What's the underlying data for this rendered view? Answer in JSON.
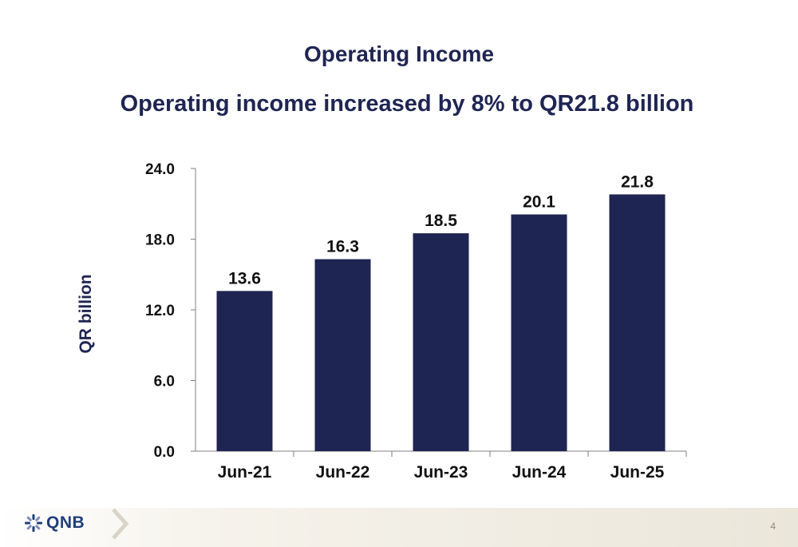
{
  "header": {
    "title": "Operating Income",
    "subtitle": "Operating income increased by 8% to QR21.8 billion"
  },
  "footer": {
    "brand": "QNB",
    "page_number": "4"
  },
  "colors": {
    "bar": "#1f2552",
    "title": "#1f2552",
    "brand": "#1f3e7a"
  },
  "chart_data": {
    "type": "bar",
    "title": "",
    "xlabel": "",
    "ylabel": "QR billion",
    "categories": [
      "Jun-21",
      "Jun-22",
      "Jun-23",
      "Jun-24",
      "Jun-25"
    ],
    "values": [
      13.6,
      16.3,
      18.5,
      20.1,
      21.8
    ],
    "data_labels": [
      "13.6",
      "16.3",
      "18.5",
      "20.1",
      "21.8"
    ],
    "ylim": [
      0,
      24
    ],
    "yticks": [
      0,
      6,
      12,
      18,
      24
    ],
    "ytick_labels": [
      "0.0",
      "6.0",
      "12.0",
      "18.0",
      "24.0"
    ],
    "grid": false,
    "legend": "none"
  }
}
